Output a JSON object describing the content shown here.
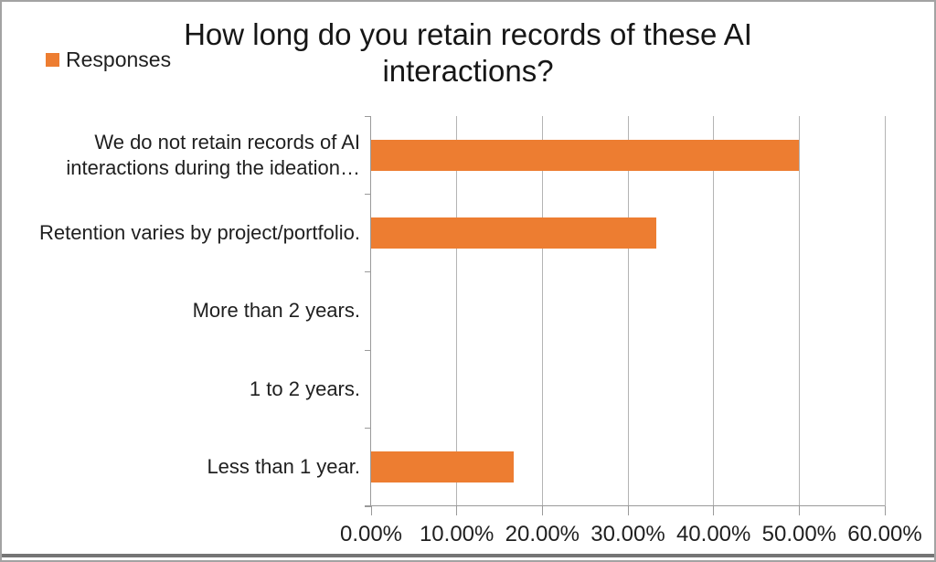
{
  "title": "How long do you retain records of these AI interactions?",
  "legend": {
    "label": "Responses",
    "swatch_color": "#ED7D31",
    "position": "top-left"
  },
  "colors": {
    "bar": "#ED7D31",
    "gridline": "#b4b4b4",
    "axis": "#9a9a9a",
    "text": "#1f1f1f",
    "frame_border": "#a3a3a3",
    "frame_bottom_border": "#757575"
  },
  "chart_data": {
    "type": "bar",
    "orientation": "horizontal",
    "title": "How long do you retain records of these AI interactions?",
    "categories": [
      "We do not retain records of AI interactions during the ideation…",
      "Retention varies by project/portfolio.",
      "More than 2 years.",
      "1 to 2 years.",
      "Less than 1 year."
    ],
    "series": [
      {
        "name": "Responses",
        "color": "#ED7D31",
        "values": [
          50.0,
          33.33,
          0.0,
          0.0,
          16.67
        ]
      }
    ],
    "x_axis": {
      "min": 0,
      "max": 60,
      "tick_step": 10,
      "tick_labels": [
        "0.00%",
        "10.00%",
        "20.00%",
        "30.00%",
        "40.00%",
        "50.00%",
        "60.00%"
      ],
      "unit": "percent"
    },
    "xlabel": "",
    "ylabel": "",
    "grid": true,
    "legend_position": "top-left"
  }
}
